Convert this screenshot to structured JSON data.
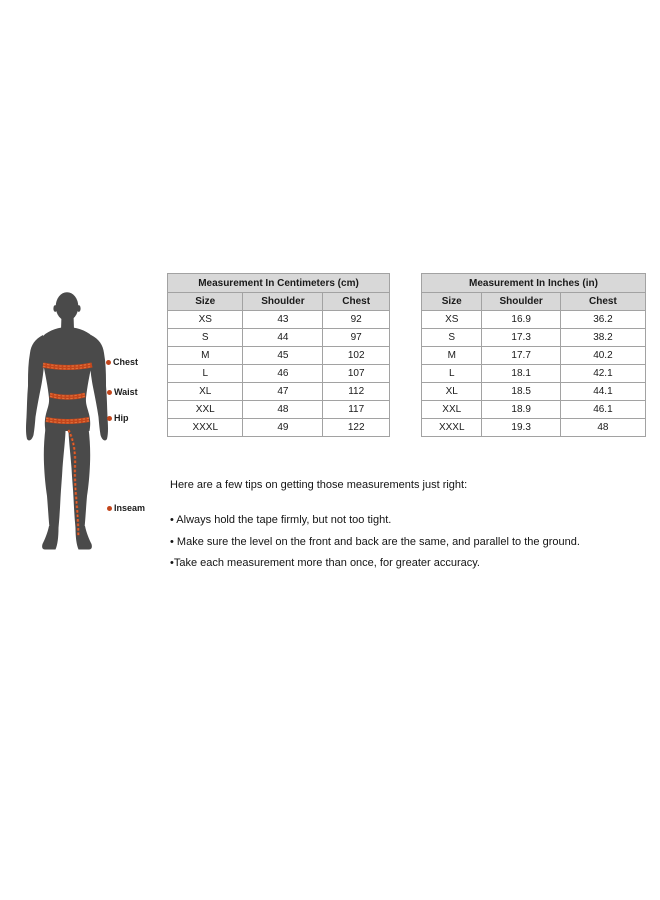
{
  "chart_data": [
    {
      "type": "table",
      "title": "Measurement In Centimeters (cm)",
      "columns": [
        "Size",
        "Shoulder",
        "Chest"
      ],
      "rows": [
        [
          "XS",
          "43",
          "92"
        ],
        [
          "S",
          "44",
          "97"
        ],
        [
          "M",
          "45",
          "102"
        ],
        [
          "L",
          "46",
          "107"
        ],
        [
          "XL",
          "47",
          "112"
        ],
        [
          "XXL",
          "48",
          "117"
        ],
        [
          "XXXL",
          "49",
          "122"
        ]
      ]
    },
    {
      "type": "table",
      "title": "Measurement In Inches (in)",
      "columns": [
        "Size",
        "Shoulder",
        "Chest"
      ],
      "rows": [
        [
          "XS",
          "16.9",
          "36.2"
        ],
        [
          "S",
          "17.3",
          "38.2"
        ],
        [
          "M",
          "17.7",
          "40.2"
        ],
        [
          "L",
          "18.1",
          "42.1"
        ],
        [
          "XL",
          "18.5",
          "44.1"
        ],
        [
          "XXL",
          "18.9",
          "46.1"
        ],
        [
          "XXXL",
          "19.3",
          "48"
        ]
      ]
    }
  ],
  "figure": {
    "labels": [
      {
        "id": "chest",
        "text": "Chest"
      },
      {
        "id": "waist",
        "text": "Waist"
      },
      {
        "id": "hip",
        "text": "Hip"
      },
      {
        "id": "inseam",
        "text": "Inseam"
      }
    ],
    "colors": {
      "silhouette": "#4a4a4a",
      "measure_line": "#c3461c",
      "measure_line_highlight": "#e0703a",
      "label_text": "#1c1c1c"
    }
  },
  "tips": {
    "intro": "Here are a few tips on getting those measurements just right:",
    "items": [
      "• Always hold the tape firmly, but not too tight.",
      "• Make sure the level on the front and back are the same, and parallel to the ground.",
      "•Take each measurement more than once, for greater accuracy."
    ]
  }
}
